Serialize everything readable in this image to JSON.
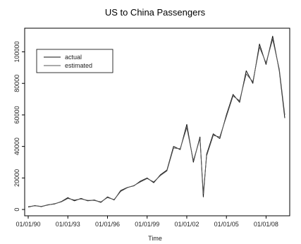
{
  "chart_data": {
    "type": "line",
    "title": "US to China Passengers",
    "xlabel": "Time",
    "ylabel": "",
    "x_range": [
      "1990-01",
      "2009-06"
    ],
    "ylim": [
      -4000,
      115000
    ],
    "x_tick_labels": [
      "01/01/90",
      "01/01/93",
      "01/01/96",
      "01/01/99",
      "01/01/02",
      "01/01/05",
      "01/01/08"
    ],
    "x_tick_dates": [
      "1990-01",
      "1993-01",
      "1996-01",
      "1999-01",
      "2002-01",
      "2005-01",
      "2008-01"
    ],
    "y_ticks": [
      0,
      20000,
      40000,
      60000,
      80000,
      100000
    ],
    "y_tick_labels": [
      "0",
      "20000",
      "40000",
      "60000",
      "80000",
      "100000"
    ],
    "legend": {
      "position": "top-left",
      "entries": [
        "actual",
        "estimated"
      ]
    },
    "grid": false,
    "x": [
      "1990-01",
      "1990-07",
      "1991-01",
      "1991-07",
      "1992-01",
      "1992-07",
      "1993-01",
      "1993-07",
      "1994-01",
      "1994-07",
      "1995-01",
      "1995-07",
      "1996-01",
      "1996-07",
      "1997-01",
      "1997-07",
      "1998-01",
      "1998-07",
      "1999-01",
      "1999-07",
      "2000-01",
      "2000-07",
      "2001-01",
      "2001-07",
      "2002-01",
      "2002-07",
      "2003-01",
      "2003-04",
      "2003-07",
      "2004-01",
      "2004-07",
      "2005-01",
      "2005-07",
      "2006-01",
      "2006-07",
      "2007-01",
      "2007-07",
      "2008-01",
      "2008-07",
      "2009-01",
      "2009-06"
    ],
    "series": [
      {
        "name": "actual",
        "values": [
          1500,
          2500,
          1800,
          3000,
          3500,
          5000,
          7500,
          5500,
          7000,
          5500,
          6000,
          4500,
          8000,
          6000,
          12000,
          14000,
          15000,
          18000,
          20000,
          17000,
          22000,
          25000,
          40000,
          38000,
          54000,
          30000,
          46000,
          8000,
          35000,
          48000,
          45000,
          60000,
          73000,
          68000,
          88000,
          80000,
          105000,
          92000,
          110000,
          88000,
          58000
        ]
      },
      {
        "name": "estimated",
        "values": [
          1800,
          2300,
          2000,
          2800,
          3700,
          4800,
          7000,
          6000,
          6700,
          5800,
          5700,
          4800,
          7600,
          6300,
          11500,
          13800,
          15200,
          17500,
          19600,
          17500,
          21500,
          24500,
          39000,
          38500,
          52000,
          31000,
          45000,
          10000,
          34000,
          47000,
          46000,
          59000,
          72000,
          69000,
          86000,
          81000,
          103000,
          93000,
          108000,
          89000,
          60000
        ]
      }
    ]
  }
}
